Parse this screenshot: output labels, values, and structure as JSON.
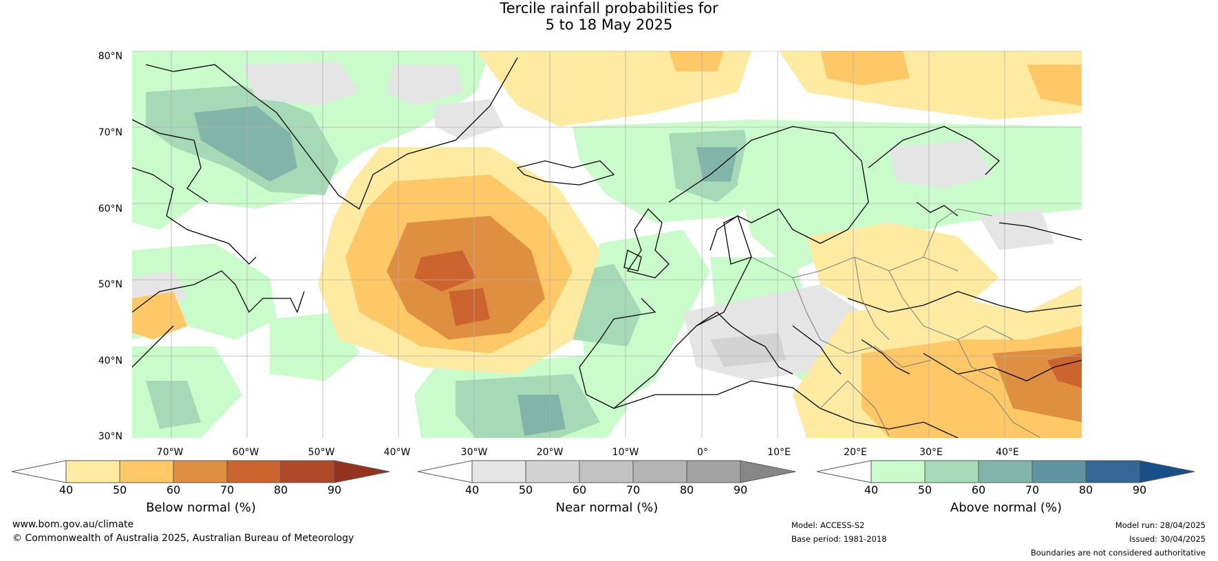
{
  "title": {
    "line1": "Tercile rainfall probabilities for",
    "line2": "5 to 18 May 2025"
  },
  "map": {
    "lat_labels": [
      "80°N",
      "70°N",
      "60°N",
      "50°N",
      "40°N",
      "30°N"
    ],
    "lon_labels": [
      "70°W",
      "60°W",
      "50°W",
      "40°W",
      "30°W",
      "20°W",
      "10°W",
      "0°",
      "10°E",
      "20°E",
      "30°E",
      "40°E"
    ]
  },
  "colorbars": [
    {
      "title": "Below normal (%)",
      "ticks": [
        "40",
        "50",
        "60",
        "70",
        "80",
        "90"
      ],
      "colors": [
        "#ffffff",
        "#feeaa0",
        "#fdc865",
        "#de9040",
        "#cc6430",
        "#ae4a28",
        "#93321f"
      ]
    },
    {
      "title": "Near normal (%)",
      "ticks": [
        "40",
        "50",
        "60",
        "70",
        "80",
        "90"
      ],
      "colors": [
        "#ffffff",
        "#e5e5e5",
        "#d3d3d3",
        "#c2c2c2",
        "#b4b4b4",
        "#a2a2a2",
        "#878787"
      ]
    },
    {
      "title": "Above normal (%)",
      "ticks": [
        "40",
        "50",
        "60",
        "70",
        "80",
        "90"
      ],
      "colors": [
        "#ffffff",
        "#cafccb",
        "#a6d9b6",
        "#82b5a9",
        "#5f93a0",
        "#336896",
        "#154f86"
      ]
    }
  ],
  "footer": {
    "url": "www.bom.gov.au/climate",
    "copyright": "© Commonwealth of Australia 2025, Australian Bureau of Meteorology",
    "model": "Model: ACCESS-S2",
    "base_period": "Base period: 1981-2018",
    "model_run": "Model run: 28/04/2025",
    "issued": "Issued: 30/04/2025",
    "boundaries": "Boundaries are not considered authoritative"
  }
}
